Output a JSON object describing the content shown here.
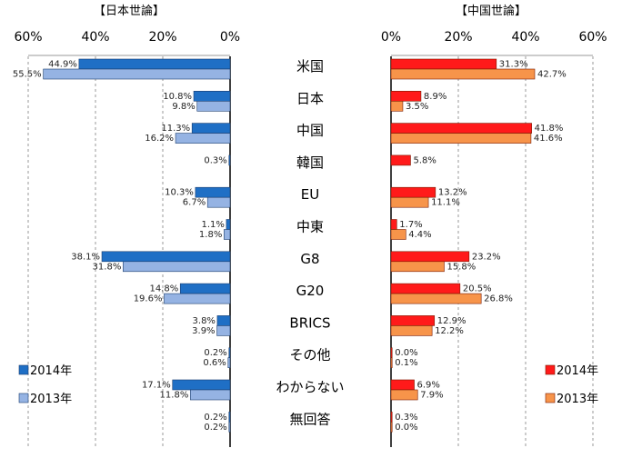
{
  "panels": {
    "left_title": "【日本世論】",
    "right_title": "【中国世論】"
  },
  "chart_data": [
    {
      "type": "bar",
      "orientation": "horizontal",
      "panel": "left",
      "title": "【日本世論】",
      "axis_direction": "reversed",
      "xlim": [
        0,
        60
      ],
      "xticks": [
        "60%",
        "40%",
        "20%",
        "0%"
      ],
      "grid": "vertical-dashed",
      "legend": "bottom-left",
      "categories": [
        "米国",
        "日本",
        "中国",
        "韓国",
        "EU",
        "中東",
        "G8",
        "G20",
        "BRICS",
        "その他",
        "わからない",
        "無回答"
      ],
      "series": [
        {
          "name": "2014年",
          "color": "#1f6fc5",
          "values": [
            44.9,
            10.8,
            11.3,
            0.3,
            10.3,
            1.1,
            38.1,
            14.8,
            3.8,
            0.2,
            17.1,
            0.2
          ]
        },
        {
          "name": "2013年",
          "color": "#95b3e3",
          "values": [
            55.5,
            9.8,
            16.2,
            null,
            6.7,
            1.8,
            31.8,
            19.6,
            3.9,
            0.6,
            11.8,
            0.2
          ]
        }
      ]
    },
    {
      "type": "bar",
      "orientation": "horizontal",
      "panel": "right",
      "title": "【中国世論】",
      "xlim": [
        0,
        60
      ],
      "xticks": [
        "0%",
        "20%",
        "40%",
        "60%"
      ],
      "grid": "vertical-dashed",
      "legend": "bottom-right",
      "categories": [
        "米国",
        "日本",
        "中国",
        "韓国",
        "EU",
        "中東",
        "G8",
        "G20",
        "BRICS",
        "その他",
        "わからない",
        "無回答"
      ],
      "series": [
        {
          "name": "2014年",
          "color": "#ff1a1a",
          "values": [
            31.3,
            8.9,
            41.8,
            5.8,
            13.2,
            1.7,
            23.2,
            20.5,
            12.9,
            0.0,
            6.9,
            0.3
          ]
        },
        {
          "name": "2013年",
          "color": "#f7944a",
          "values": [
            42.7,
            3.5,
            41.6,
            null,
            11.1,
            4.4,
            15.8,
            26.8,
            12.2,
            0.1,
            7.9,
            0.0
          ]
        }
      ]
    }
  ]
}
